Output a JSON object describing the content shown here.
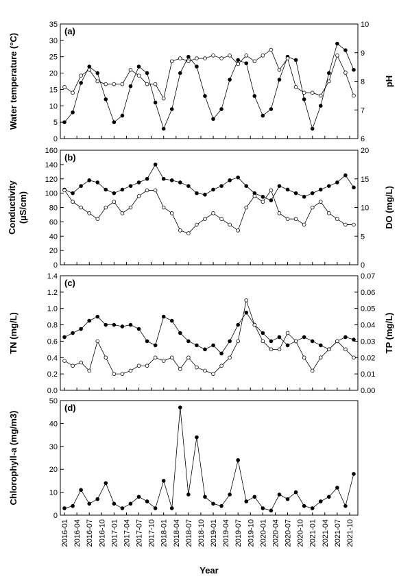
{
  "chart_data": [
    {
      "type": "line",
      "panel": "(a)",
      "ylabel": [
        "Water temperature (°C)"
      ],
      "y2label": [
        "pH"
      ],
      "ylim": [
        0,
        35
      ],
      "yticks": [
        0,
        5,
        10,
        15,
        20,
        25,
        30,
        35
      ],
      "y2lim": [
        6,
        10
      ],
      "y2ticks": [
        6,
        7,
        8,
        9,
        10
      ],
      "series": [
        {
          "color": "#000000",
          "values": [
            5,
            8,
            17,
            22,
            20,
            12,
            5,
            7,
            16,
            22,
            20,
            11,
            3,
            9,
            20,
            25,
            22,
            13,
            6,
            9,
            18,
            24,
            23,
            13,
            7,
            9,
            18,
            25,
            24,
            12,
            3,
            10,
            20,
            29,
            27,
            21
          ]
        },
        {
          "color": "#ffffff",
          "axis": "y2",
          "values": [
            7.8,
            7.6,
            8.2,
            8.4,
            8.0,
            7.9,
            7.9,
            7.9,
            8.4,
            8.2,
            7.9,
            7.9,
            7.4,
            8.7,
            8.8,
            8.7,
            8.8,
            8.8,
            8.9,
            8.8,
            8.9,
            8.6,
            8.9,
            8.7,
            8.9,
            9.1,
            8.4,
            8.8,
            7.8,
            7.6,
            7.6,
            7.5,
            8.0,
            8.9,
            8.3,
            7.5
          ]
        }
      ]
    },
    {
      "type": "line",
      "panel": "(b)",
      "ylabel": [
        "Conductivity",
        "(µS/cm)"
      ],
      "y2label": [
        "DO (mg/L)"
      ],
      "ylim": [
        0,
        160
      ],
      "yticks": [
        0,
        20,
        40,
        60,
        80,
        100,
        120,
        140,
        160
      ],
      "y2lim": [
        0,
        20
      ],
      "y2ticks": [
        0,
        5,
        10,
        15,
        20
      ],
      "series": [
        {
          "color": "#000000",
          "values": [
            105,
            100,
            110,
            118,
            115,
            105,
            100,
            105,
            110,
            115,
            120,
            140,
            120,
            118,
            115,
            110,
            100,
            98,
            105,
            110,
            118,
            122,
            110,
            100,
            95,
            90,
            110,
            105,
            100,
            95,
            100,
            105,
            110,
            115,
            125,
            108
          ]
        },
        {
          "color": "#ffffff",
          "axis": "y2",
          "values": [
            13,
            11,
            10,
            9,
            8,
            10,
            11,
            9,
            10,
            12,
            13,
            13,
            10,
            9,
            6,
            5.5,
            7,
            8,
            9,
            8,
            7,
            6,
            10,
            12,
            11,
            13,
            9,
            8,
            8,
            7,
            10,
            11,
            9,
            8,
            7,
            7
          ]
        }
      ]
    },
    {
      "type": "line",
      "panel": "(c)",
      "ylabel": [
        "TN (mg/L)"
      ],
      "y2label": [
        "TP (mg/L)"
      ],
      "ylim": [
        0,
        1.4
      ],
      "yticks": [
        {
          "value": 0,
          "label": "0.0"
        },
        0.2,
        0.4,
        0.6,
        0.8,
        {
          "value": 1,
          "label": "1.0"
        },
        1.2,
        1.4
      ],
      "y2lim": [
        0,
        0.07
      ],
      "y2ticks": [
        {
          "value": 0,
          "label": "0.00"
        },
        0.01,
        0.02,
        0.03,
        0.04,
        0.05,
        0.06,
        0.07
      ],
      "series": [
        {
          "color": "#000000",
          "values": [
            0.65,
            0.7,
            0.75,
            0.85,
            0.9,
            0.8,
            0.8,
            0.78,
            0.8,
            0.75,
            0.6,
            0.55,
            0.9,
            0.85,
            0.7,
            0.6,
            0.55,
            0.5,
            0.55,
            0.45,
            0.6,
            0.8,
            0.95,
            0.8,
            0.7,
            0.6,
            0.65,
            0.55,
            0.6,
            0.65,
            0.6,
            0.55,
            0.5,
            0.6,
            0.65,
            0.62
          ]
        },
        {
          "color": "#ffffff",
          "axis": "y2",
          "values": [
            0.018,
            0.015,
            0.017,
            0.012,
            0.03,
            0.02,
            0.01,
            0.01,
            0.012,
            0.015,
            0.015,
            0.02,
            0.018,
            0.02,
            0.013,
            0.02,
            0.014,
            0.012,
            0.01,
            0.015,
            0.02,
            0.03,
            0.055,
            0.04,
            0.03,
            0.025,
            0.025,
            0.035,
            0.03,
            0.02,
            0.012,
            0.02,
            0.025,
            0.03,
            0.025,
            0.02
          ]
        }
      ]
    },
    {
      "type": "line",
      "panel": "(d)",
      "ylabel": [
        "Chlorophyll-a (mg/m3)"
      ],
      "xlabel": "Year",
      "ylim": [
        0,
        50
      ],
      "yticks": [
        0,
        10,
        20,
        30,
        40,
        50
      ],
      "xlim": [
        "2015-12",
        "2021-12"
      ],
      "xticks": [
        "2016-01",
        "2016-04",
        "2016-07",
        "2016-10",
        "2017-01",
        "2017-04",
        "2017-07",
        "2017-10",
        "2018-01",
        "2018-04",
        "2018-07",
        "2018-10",
        "2019-01",
        "2019-04",
        "2019-07",
        "2019-10",
        "2020-01",
        "2020-04",
        "2020-07",
        "2020-10",
        "2021-01",
        "2021-04",
        "2021-07",
        "2021-10"
      ],
      "x": [
        "2016-01",
        "2016-03",
        "2016-05",
        "2016-07",
        "2016-09",
        "2016-11",
        "2017-01",
        "2017-03",
        "2017-05",
        "2017-07",
        "2017-09",
        "2017-11",
        "2018-01",
        "2018-03",
        "2018-05",
        "2018-07",
        "2018-09",
        "2018-11",
        "2019-01",
        "2019-03",
        "2019-05",
        "2019-07",
        "2019-09",
        "2019-11",
        "2020-01",
        "2020-03",
        "2020-05",
        "2020-07",
        "2020-09",
        "2020-11",
        "2021-01",
        "2021-03",
        "2021-05",
        "2021-07",
        "2021-09",
        "2021-11"
      ],
      "series": [
        {
          "color": "#000000",
          "values": [
            3,
            4,
            11,
            5,
            7,
            14,
            5,
            3,
            5,
            8,
            6,
            3,
            15,
            3,
            47,
            9,
            34,
            8,
            5,
            4,
            9,
            24,
            6,
            8,
            3,
            2,
            9,
            7,
            10,
            4,
            3,
            6,
            8,
            12,
            4,
            18
          ]
        }
      ]
    }
  ]
}
